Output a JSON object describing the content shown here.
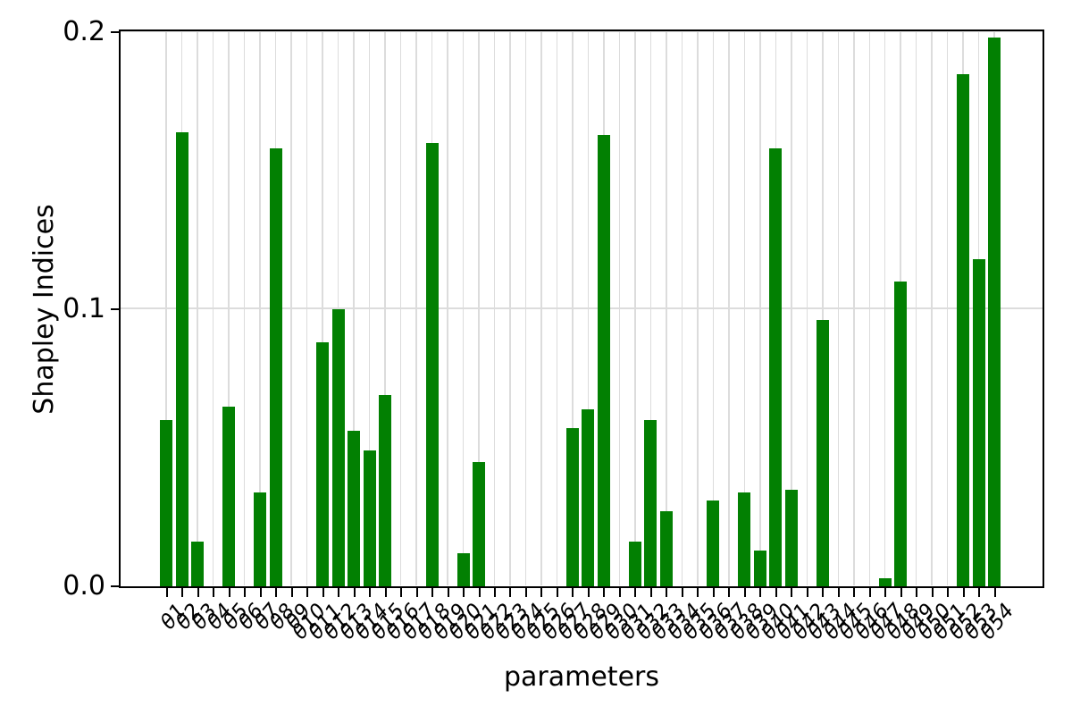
{
  "chart_data": {
    "type": "bar",
    "title": "",
    "xlabel": "parameters",
    "ylabel": "Shapley Indices",
    "ylim": [
      0,
      0.2
    ],
    "yticks": [
      0,
      0.1,
      0.2
    ],
    "ytick_labels": [
      "0.0",
      "0.1",
      "0.2"
    ],
    "grid": true,
    "grid_color": "#dcdcdc",
    "bar_color": "#028002",
    "categories": [
      "θ1",
      "θ2",
      "θ3",
      "θ4",
      "θ5",
      "θ6",
      "θ7",
      "θ8",
      "θ9",
      "θ10",
      "θ11",
      "θ12",
      "θ13",
      "θ14",
      "θ15",
      "θ16",
      "θ17",
      "θ18",
      "θ19",
      "θ20",
      "θ21",
      "θ22",
      "θ23",
      "θ24",
      "θ25",
      "θ26",
      "θ27",
      "θ28",
      "θ29",
      "θ30",
      "θ31",
      "θ32",
      "θ33",
      "θ34",
      "θ35",
      "θ36",
      "θ37",
      "θ38",
      "θ39",
      "θ40",
      "θ41",
      "θ42",
      "θ43",
      "θ44",
      "θ45",
      "θ46",
      "θ47",
      "θ48",
      "θ49",
      "θ50",
      "θ51",
      "θ52",
      "θ53",
      "θ54"
    ],
    "values": [
      0.06,
      0.164,
      0.016,
      0,
      0.065,
      0,
      0.034,
      0.158,
      0,
      0,
      0.088,
      0.1,
      0.056,
      0.049,
      0.069,
      0,
      0,
      0.16,
      0,
      0.012,
      0.045,
      0,
      0,
      0,
      0,
      0,
      0.057,
      0.064,
      0.163,
      0,
      0.016,
      0.06,
      0.027,
      0,
      0,
      0.031,
      0,
      0.034,
      0.013,
      0.158,
      0.035,
      0,
      0.096,
      0,
      0,
      0,
      0.003,
      0.11,
      0,
      0,
      0,
      0.185,
      0.118,
      0.198
    ]
  }
}
